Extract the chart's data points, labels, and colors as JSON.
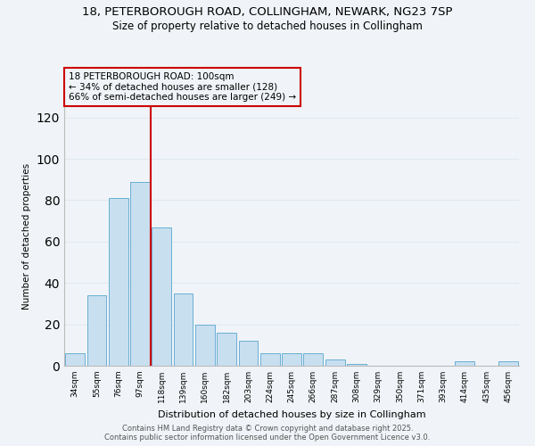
{
  "title1": "18, PETERBOROUGH ROAD, COLLINGHAM, NEWARK, NG23 7SP",
  "title2": "Size of property relative to detached houses in Collingham",
  "xlabel": "Distribution of detached houses by size in Collingham",
  "ylabel": "Number of detached properties",
  "bar_color": "#c8dff0",
  "bar_edge_color": "#6aafd4",
  "categories": [
    "34sqm",
    "55sqm",
    "76sqm",
    "97sqm",
    "118sqm",
    "139sqm",
    "160sqm",
    "182sqm",
    "203sqm",
    "224sqm",
    "245sqm",
    "266sqm",
    "287sqm",
    "308sqm",
    "329sqm",
    "350sqm",
    "371sqm",
    "393sqm",
    "414sqm",
    "435sqm",
    "456sqm"
  ],
  "values": [
    6,
    34,
    81,
    89,
    67,
    35,
    20,
    16,
    12,
    6,
    6,
    6,
    3,
    1,
    0,
    0,
    0,
    0,
    2,
    0,
    2
  ],
  "vline_index": 3,
  "vline_color": "#cc0000",
  "annotation_title": "18 PETERBOROUGH ROAD: 100sqm",
  "annotation_line1": "← 34% of detached houses are smaller (128)",
  "annotation_line2": "66% of semi-detached houses are larger (249) →",
  "ylim": [
    0,
    125
  ],
  "yticks": [
    0,
    20,
    40,
    60,
    80,
    100,
    120
  ],
  "grid_color": "#e0e8f0",
  "footer1": "Contains HM Land Registry data © Crown copyright and database right 2025.",
  "footer2": "Contains public sector information licensed under the Open Government Licence v3.0.",
  "background_color": "#f0f4f8"
}
